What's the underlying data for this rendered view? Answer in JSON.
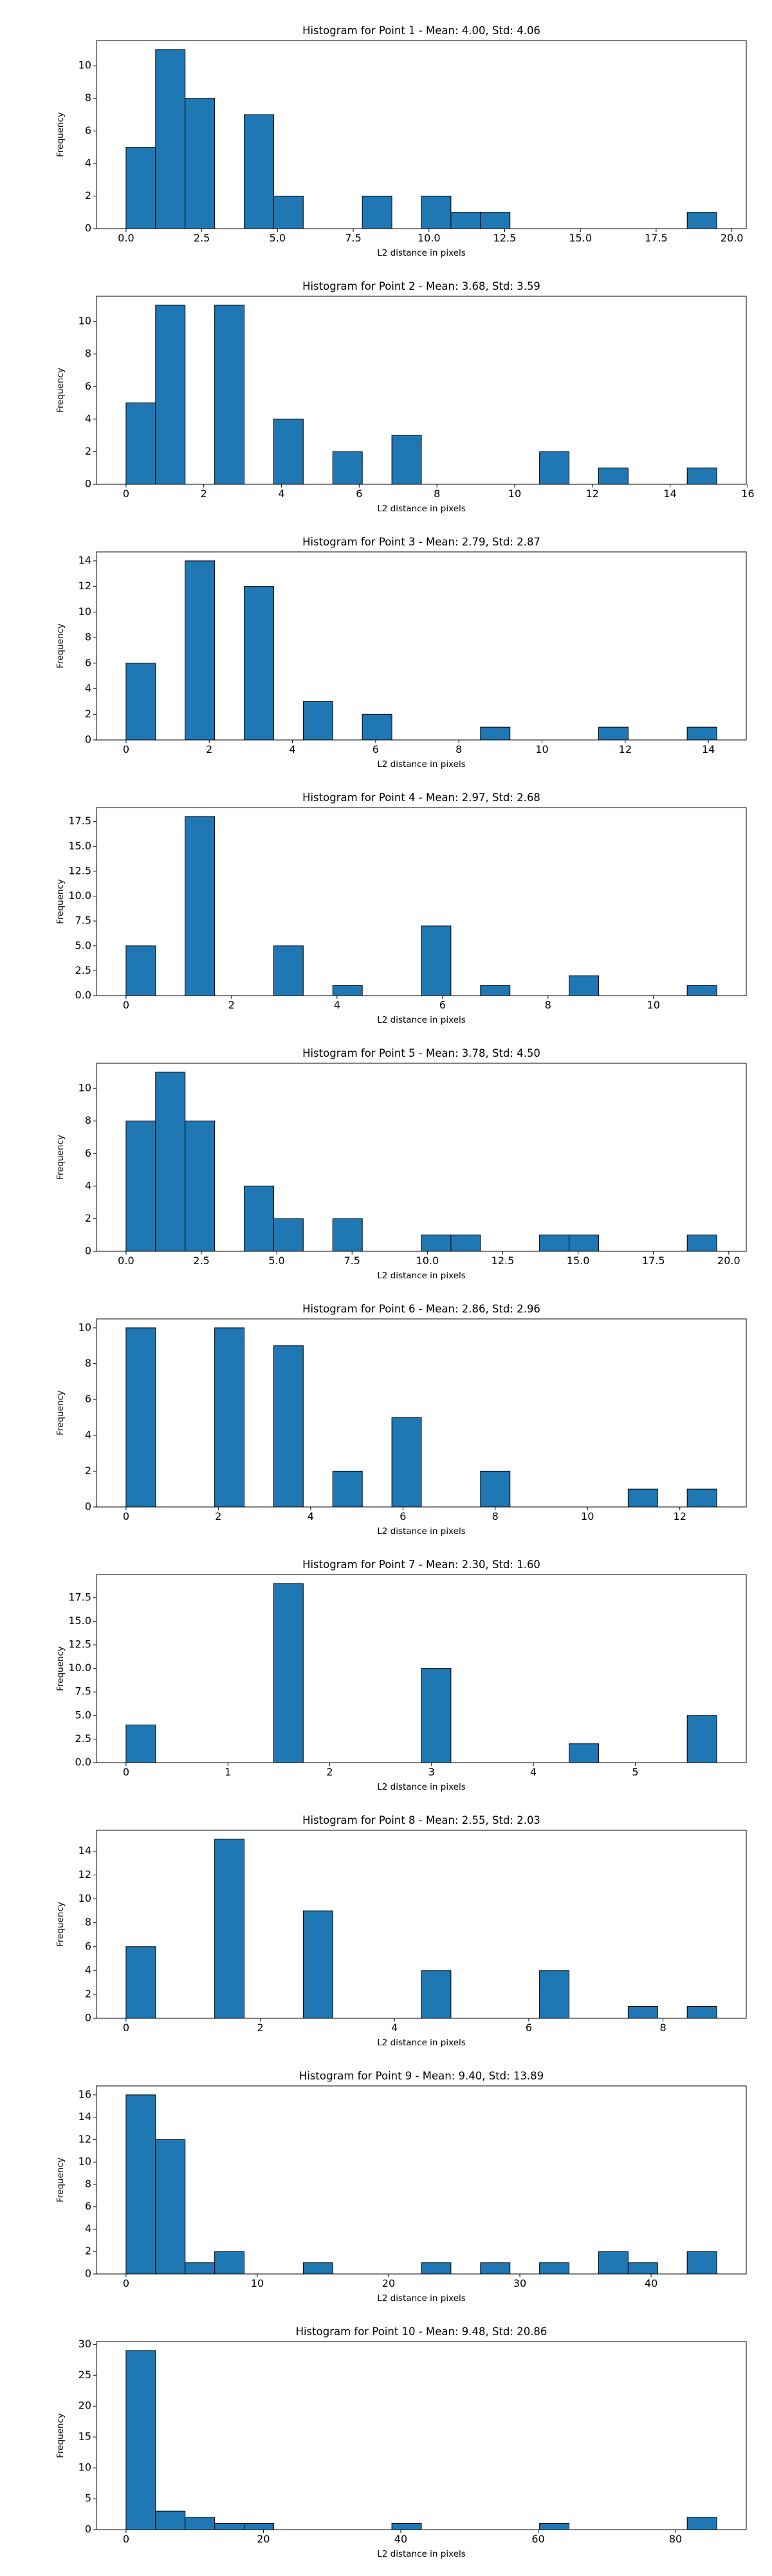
{
  "chart_data": [
    {
      "type": "bar",
      "title": "Histogram for Point 1 - Mean: 4.00, Std: 4.06",
      "xlabel": "L2 distance in pixels",
      "ylabel": "Frequency",
      "bin_edges": [
        0.0,
        0.975,
        1.95,
        2.925,
        3.9,
        4.875,
        5.85,
        6.825,
        7.8,
        8.775,
        9.75,
        10.725,
        11.7,
        12.675,
        13.65,
        14.625,
        15.6,
        16.575,
        17.55,
        18.525,
        19.5
      ],
      "counts": [
        5,
        11,
        8,
        0,
        7,
        2,
        0,
        0,
        2,
        0,
        2,
        1,
        1,
        0,
        0,
        0,
        0,
        0,
        0,
        1
      ],
      "xlim": [
        -0.975,
        20.475
      ],
      "ylim": [
        0,
        11.55
      ],
      "xticks": [
        0.0,
        2.5,
        5.0,
        7.5,
        10.0,
        12.5,
        15.0,
        17.5,
        20.0
      ],
      "xtick_labels": [
        "0.0",
        "2.5",
        "5.0",
        "7.5",
        "10.0",
        "12.5",
        "15.0",
        "17.5",
        "20.0"
      ],
      "yticks": [
        0,
        2,
        4,
        6,
        8,
        10
      ],
      "ytick_labels": [
        "0",
        "2",
        "4",
        "6",
        "8",
        "10"
      ]
    },
    {
      "type": "bar",
      "title": "Histogram for Point 2 - Mean: 3.68, Std: 3.59",
      "xlabel": "L2 distance in pixels",
      "ylabel": "Frequency",
      "bin_edges": [
        0.0,
        0.76,
        1.52,
        2.28,
        3.04,
        3.8,
        4.56,
        5.32,
        6.08,
        6.84,
        7.6,
        8.36,
        9.12,
        9.88,
        10.64,
        11.4,
        12.16,
        12.92,
        13.68,
        14.44,
        15.2
      ],
      "counts": [
        5,
        11,
        0,
        11,
        0,
        4,
        0,
        2,
        0,
        3,
        0,
        0,
        0,
        0,
        2,
        0,
        1,
        0,
        0,
        1
      ],
      "xlim": [
        -0.76,
        15.96
      ],
      "ylim": [
        0,
        11.55
      ],
      "xticks": [
        0,
        2,
        4,
        6,
        8,
        10,
        12,
        14,
        16
      ],
      "xtick_labels": [
        "0",
        "2",
        "4",
        "6",
        "8",
        "10",
        "12",
        "14",
        "16"
      ],
      "yticks": [
        0,
        2,
        4,
        6,
        8,
        10
      ],
      "ytick_labels": [
        "0",
        "2",
        "4",
        "6",
        "8",
        "10"
      ]
    },
    {
      "type": "bar",
      "title": "Histogram for Point 3 - Mean: 2.79, Std: 2.87",
      "xlabel": "L2 distance in pixels",
      "ylabel": "Frequency",
      "bin_edges": [
        0.0,
        0.71,
        1.42,
        2.13,
        2.84,
        3.55,
        4.26,
        4.97,
        5.68,
        6.39,
        7.1,
        7.81,
        8.52,
        9.23,
        9.94,
        10.65,
        11.36,
        12.07,
        12.78,
        13.49,
        14.2
      ],
      "counts": [
        6,
        0,
        14,
        0,
        12,
        0,
        3,
        0,
        2,
        0,
        0,
        0,
        1,
        0,
        0,
        0,
        1,
        0,
        0,
        1
      ],
      "xlim": [
        -0.71,
        14.91
      ],
      "ylim": [
        0,
        14.7
      ],
      "xticks": [
        0,
        2,
        4,
        6,
        8,
        10,
        12,
        14
      ],
      "xtick_labels": [
        "0",
        "2",
        "4",
        "6",
        "8",
        "10",
        "12",
        "14"
      ],
      "yticks": [
        0,
        2,
        4,
        6,
        8,
        10,
        12,
        14
      ],
      "ytick_labels": [
        "0",
        "2",
        "4",
        "6",
        "8",
        "10",
        "12",
        "14"
      ]
    },
    {
      "type": "bar",
      "title": "Histogram for Point 4 - Mean: 2.97, Std: 2.68",
      "xlabel": "L2 distance in pixels",
      "ylabel": "Frequency",
      "bin_edges": [
        0.0,
        0.56,
        1.12,
        1.68,
        2.24,
        2.8,
        3.36,
        3.92,
        4.48,
        5.04,
        5.6,
        6.16,
        6.72,
        7.28,
        7.84,
        8.4,
        8.96,
        9.52,
        10.08,
        10.64,
        11.2
      ],
      "counts": [
        5,
        0,
        18,
        0,
        0,
        5,
        0,
        1,
        0,
        0,
        7,
        0,
        1,
        0,
        0,
        2,
        0,
        0,
        0,
        1
      ],
      "xlim": [
        -0.56,
        11.76
      ],
      "ylim": [
        0,
        18.9
      ],
      "xticks": [
        0,
        2,
        4,
        6,
        8,
        10
      ],
      "xtick_labels": [
        "0",
        "2",
        "4",
        "6",
        "8",
        "10"
      ],
      "yticks": [
        0,
        2.5,
        5.0,
        7.5,
        10.0,
        12.5,
        15.0,
        17.5
      ],
      "ytick_labels": [
        "0.0",
        "2.5",
        "5.0",
        "7.5",
        "10.0",
        "12.5",
        "15.0",
        "17.5"
      ]
    },
    {
      "type": "bar",
      "title": "Histogram for Point 5 - Mean: 3.78, Std: 4.50",
      "xlabel": "L2 distance in pixels",
      "ylabel": "Frequency",
      "bin_edges": [
        0.0,
        0.98,
        1.96,
        2.94,
        3.92,
        4.9,
        5.88,
        6.86,
        7.84,
        8.82,
        9.8,
        10.78,
        11.76,
        12.74,
        13.72,
        14.7,
        15.68,
        16.66,
        17.64,
        18.62,
        19.6
      ],
      "counts": [
        8,
        11,
        8,
        0,
        4,
        2,
        0,
        2,
        0,
        0,
        1,
        1,
        0,
        0,
        1,
        1,
        0,
        0,
        0,
        1
      ],
      "xlim": [
        -0.98,
        20.58
      ],
      "ylim": [
        0,
        11.55
      ],
      "xticks": [
        0.0,
        2.5,
        5.0,
        7.5,
        10.0,
        12.5,
        15.0,
        17.5,
        20.0
      ],
      "xtick_labels": [
        "0.0",
        "2.5",
        "5.0",
        "7.5",
        "10.0",
        "12.5",
        "15.0",
        "17.5",
        "20.0"
      ],
      "yticks": [
        0,
        2,
        4,
        6,
        8,
        10
      ],
      "ytick_labels": [
        "0",
        "2",
        "4",
        "6",
        "8",
        "10"
      ]
    },
    {
      "type": "bar",
      "title": "Histogram for Point 6 - Mean: 2.86, Std: 2.96",
      "xlabel": "L2 distance in pixels",
      "ylabel": "Frequency",
      "bin_edges": [
        0.0,
        0.64,
        1.28,
        1.92,
        2.56,
        3.2,
        3.84,
        4.48,
        5.12,
        5.76,
        6.4,
        7.04,
        7.68,
        8.32,
        8.96,
        9.6,
        10.24,
        10.88,
        11.52,
        12.16,
        12.8
      ],
      "counts": [
        10,
        0,
        0,
        10,
        0,
        9,
        0,
        2,
        0,
        5,
        0,
        0,
        2,
        0,
        0,
        0,
        0,
        1,
        0,
        1
      ],
      "xlim": [
        -0.64,
        13.44
      ],
      "ylim": [
        0,
        10.5
      ],
      "xticks": [
        0,
        2,
        4,
        6,
        8,
        10,
        12
      ],
      "xtick_labels": [
        "0",
        "2",
        "4",
        "6",
        "8",
        "10",
        "12"
      ],
      "yticks": [
        0,
        2,
        4,
        6,
        8,
        10
      ],
      "ytick_labels": [
        "0",
        "2",
        "4",
        "6",
        "8",
        "10"
      ]
    },
    {
      "type": "bar",
      "title": "Histogram for Point 7 - Mean: 2.30, Std: 1.60",
      "xlabel": "L2 distance in pixels",
      "ylabel": "Frequency",
      "bin_edges": [
        0.0,
        0.29,
        0.58,
        0.87,
        1.16,
        1.45,
        1.74,
        2.03,
        2.32,
        2.61,
        2.9,
        3.19,
        3.48,
        3.77,
        4.06,
        4.35,
        4.64,
        4.93,
        5.22,
        5.51,
        5.8
      ],
      "counts": [
        4,
        0,
        0,
        0,
        0,
        19,
        0,
        0,
        0,
        0,
        10,
        0,
        0,
        0,
        0,
        2,
        0,
        0,
        0,
        5
      ],
      "xlim": [
        -0.29,
        6.09
      ],
      "ylim": [
        0,
        19.95
      ],
      "xticks": [
        0,
        1,
        2,
        3,
        4,
        5
      ],
      "xtick_labels": [
        "0",
        "1",
        "2",
        "3",
        "4",
        "5"
      ],
      "yticks": [
        0,
        2.5,
        5.0,
        7.5,
        10.0,
        12.5,
        15.0,
        17.5
      ],
      "ytick_labels": [
        "0.0",
        "2.5",
        "5.0",
        "7.5",
        "10.0",
        "12.5",
        "15.0",
        "17.5"
      ]
    },
    {
      "type": "bar",
      "title": "Histogram for Point 8 - Mean: 2.55, Std: 2.03",
      "xlabel": "L2 distance in pixels",
      "ylabel": "Frequency",
      "bin_edges": [
        0.0,
        0.44,
        0.88,
        1.32,
        1.76,
        2.2,
        2.64,
        3.08,
        3.52,
        3.96,
        4.4,
        4.84,
        5.28,
        5.72,
        6.16,
        6.6,
        7.04,
        7.48,
        7.92,
        8.36,
        8.8
      ],
      "counts": [
        6,
        0,
        0,
        15,
        0,
        0,
        9,
        0,
        0,
        0,
        4,
        0,
        0,
        0,
        4,
        0,
        0,
        1,
        0,
        1
      ],
      "xlim": [
        -0.44,
        9.24
      ],
      "ylim": [
        0,
        15.75
      ],
      "xticks": [
        0,
        2,
        4,
        6,
        8
      ],
      "xtick_labels": [
        "0",
        "2",
        "4",
        "6",
        "8"
      ],
      "yticks": [
        0,
        2,
        4,
        6,
        8,
        10,
        12,
        14
      ],
      "ytick_labels": [
        "0",
        "2",
        "4",
        "6",
        "8",
        "10",
        "12",
        "14"
      ]
    },
    {
      "type": "bar",
      "title": "Histogram for Point 9 - Mean: 9.40, Std: 13.89",
      "xlabel": "L2 distance in pixels",
      "ylabel": "Frequency",
      "bin_edges": [
        0.0,
        2.25,
        4.5,
        6.75,
        9.0,
        11.25,
        13.5,
        15.75,
        18.0,
        20.25,
        22.5,
        24.75,
        27.0,
        29.25,
        31.5,
        33.75,
        36.0,
        38.25,
        40.5,
        42.75,
        45.0
      ],
      "counts": [
        16,
        12,
        1,
        2,
        0,
        0,
        1,
        0,
        0,
        0,
        1,
        0,
        1,
        0,
        1,
        0,
        2,
        1,
        0,
        2
      ],
      "xlim": [
        -2.25,
        47.25
      ],
      "ylim": [
        0,
        16.8
      ],
      "xticks": [
        0,
        10,
        20,
        30,
        40
      ],
      "xtick_labels": [
        "0",
        "10",
        "20",
        "30",
        "40"
      ],
      "yticks": [
        0,
        2,
        4,
        6,
        8,
        10,
        12,
        14,
        16
      ],
      "ytick_labels": [
        "0",
        "2",
        "4",
        "6",
        "8",
        "10",
        "12",
        "14",
        "16"
      ]
    },
    {
      "type": "bar",
      "title": "Histogram for Point 10 - Mean: 9.48, Std: 20.86",
      "xlabel": "L2 distance in pixels",
      "ylabel": "Frequency",
      "bin_edges": [
        0.0,
        4.3,
        8.6,
        12.9,
        17.2,
        21.5,
        25.8,
        30.1,
        34.4,
        38.7,
        43.0,
        47.3,
        51.6,
        55.9,
        60.2,
        64.5,
        68.8,
        73.1,
        77.4,
        81.7,
        86.0
      ],
      "counts": [
        29,
        3,
        2,
        1,
        1,
        0,
        0,
        0,
        0,
        1,
        0,
        0,
        0,
        0,
        1,
        0,
        0,
        0,
        0,
        2
      ],
      "xlim": [
        -4.3,
        90.3
      ],
      "ylim": [
        0,
        30.45
      ],
      "xticks": [
        0,
        20,
        40,
        60,
        80
      ],
      "xtick_labels": [
        "0",
        "20",
        "40",
        "60",
        "80"
      ],
      "yticks": [
        0,
        5,
        10,
        15,
        20,
        25,
        30
      ],
      "ytick_labels": [
        "0",
        "5",
        "10",
        "15",
        "20",
        "25",
        "30"
      ]
    }
  ]
}
